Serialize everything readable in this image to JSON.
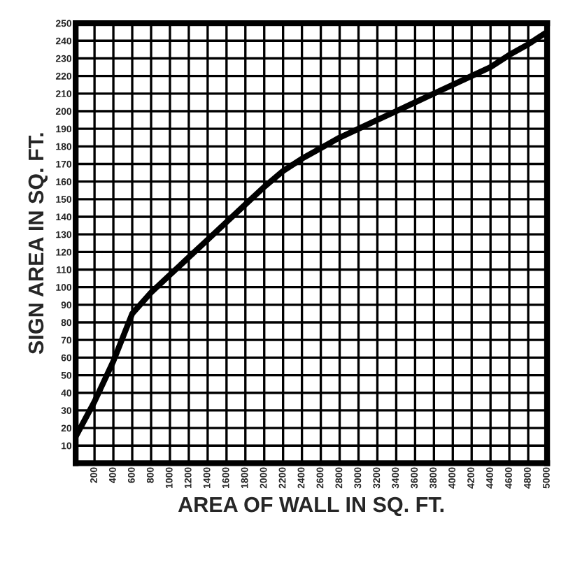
{
  "chart_data": {
    "type": "line",
    "xlabel": "AREA OF WALL IN SQ. FT.",
    "ylabel": "SIGN AREA IN SQ. FT.",
    "xlim": [
      0,
      5000
    ],
    "ylim": [
      0,
      250
    ],
    "xticks": [
      200,
      400,
      600,
      800,
      1000,
      1200,
      1400,
      1600,
      1800,
      2000,
      2200,
      2400,
      2600,
      2800,
      3000,
      3200,
      3400,
      3600,
      3800,
      4000,
      4200,
      4400,
      4600,
      4800,
      5000
    ],
    "yticks": [
      10,
      20,
      30,
      40,
      50,
      60,
      70,
      80,
      90,
      100,
      110,
      120,
      130,
      140,
      150,
      160,
      170,
      180,
      190,
      200,
      210,
      220,
      230,
      240,
      250
    ],
    "grid": true,
    "series": [
      {
        "color": "#000000",
        "x": [
          0,
          200,
          400,
          600,
          800,
          1000,
          1200,
          1400,
          1600,
          1800,
          2000,
          2200,
          2400,
          2600,
          2800,
          3000,
          3200,
          3400,
          3600,
          3800,
          4000,
          4200,
          4400,
          4600,
          4800,
          5000
        ],
        "values": [
          15,
          35,
          58,
          85,
          97,
          107,
          117,
          127,
          137,
          147,
          157,
          166,
          173,
          179,
          185,
          190,
          195,
          200,
          205,
          210,
          215,
          220,
          225,
          232,
          238,
          245
        ]
      }
    ]
  }
}
